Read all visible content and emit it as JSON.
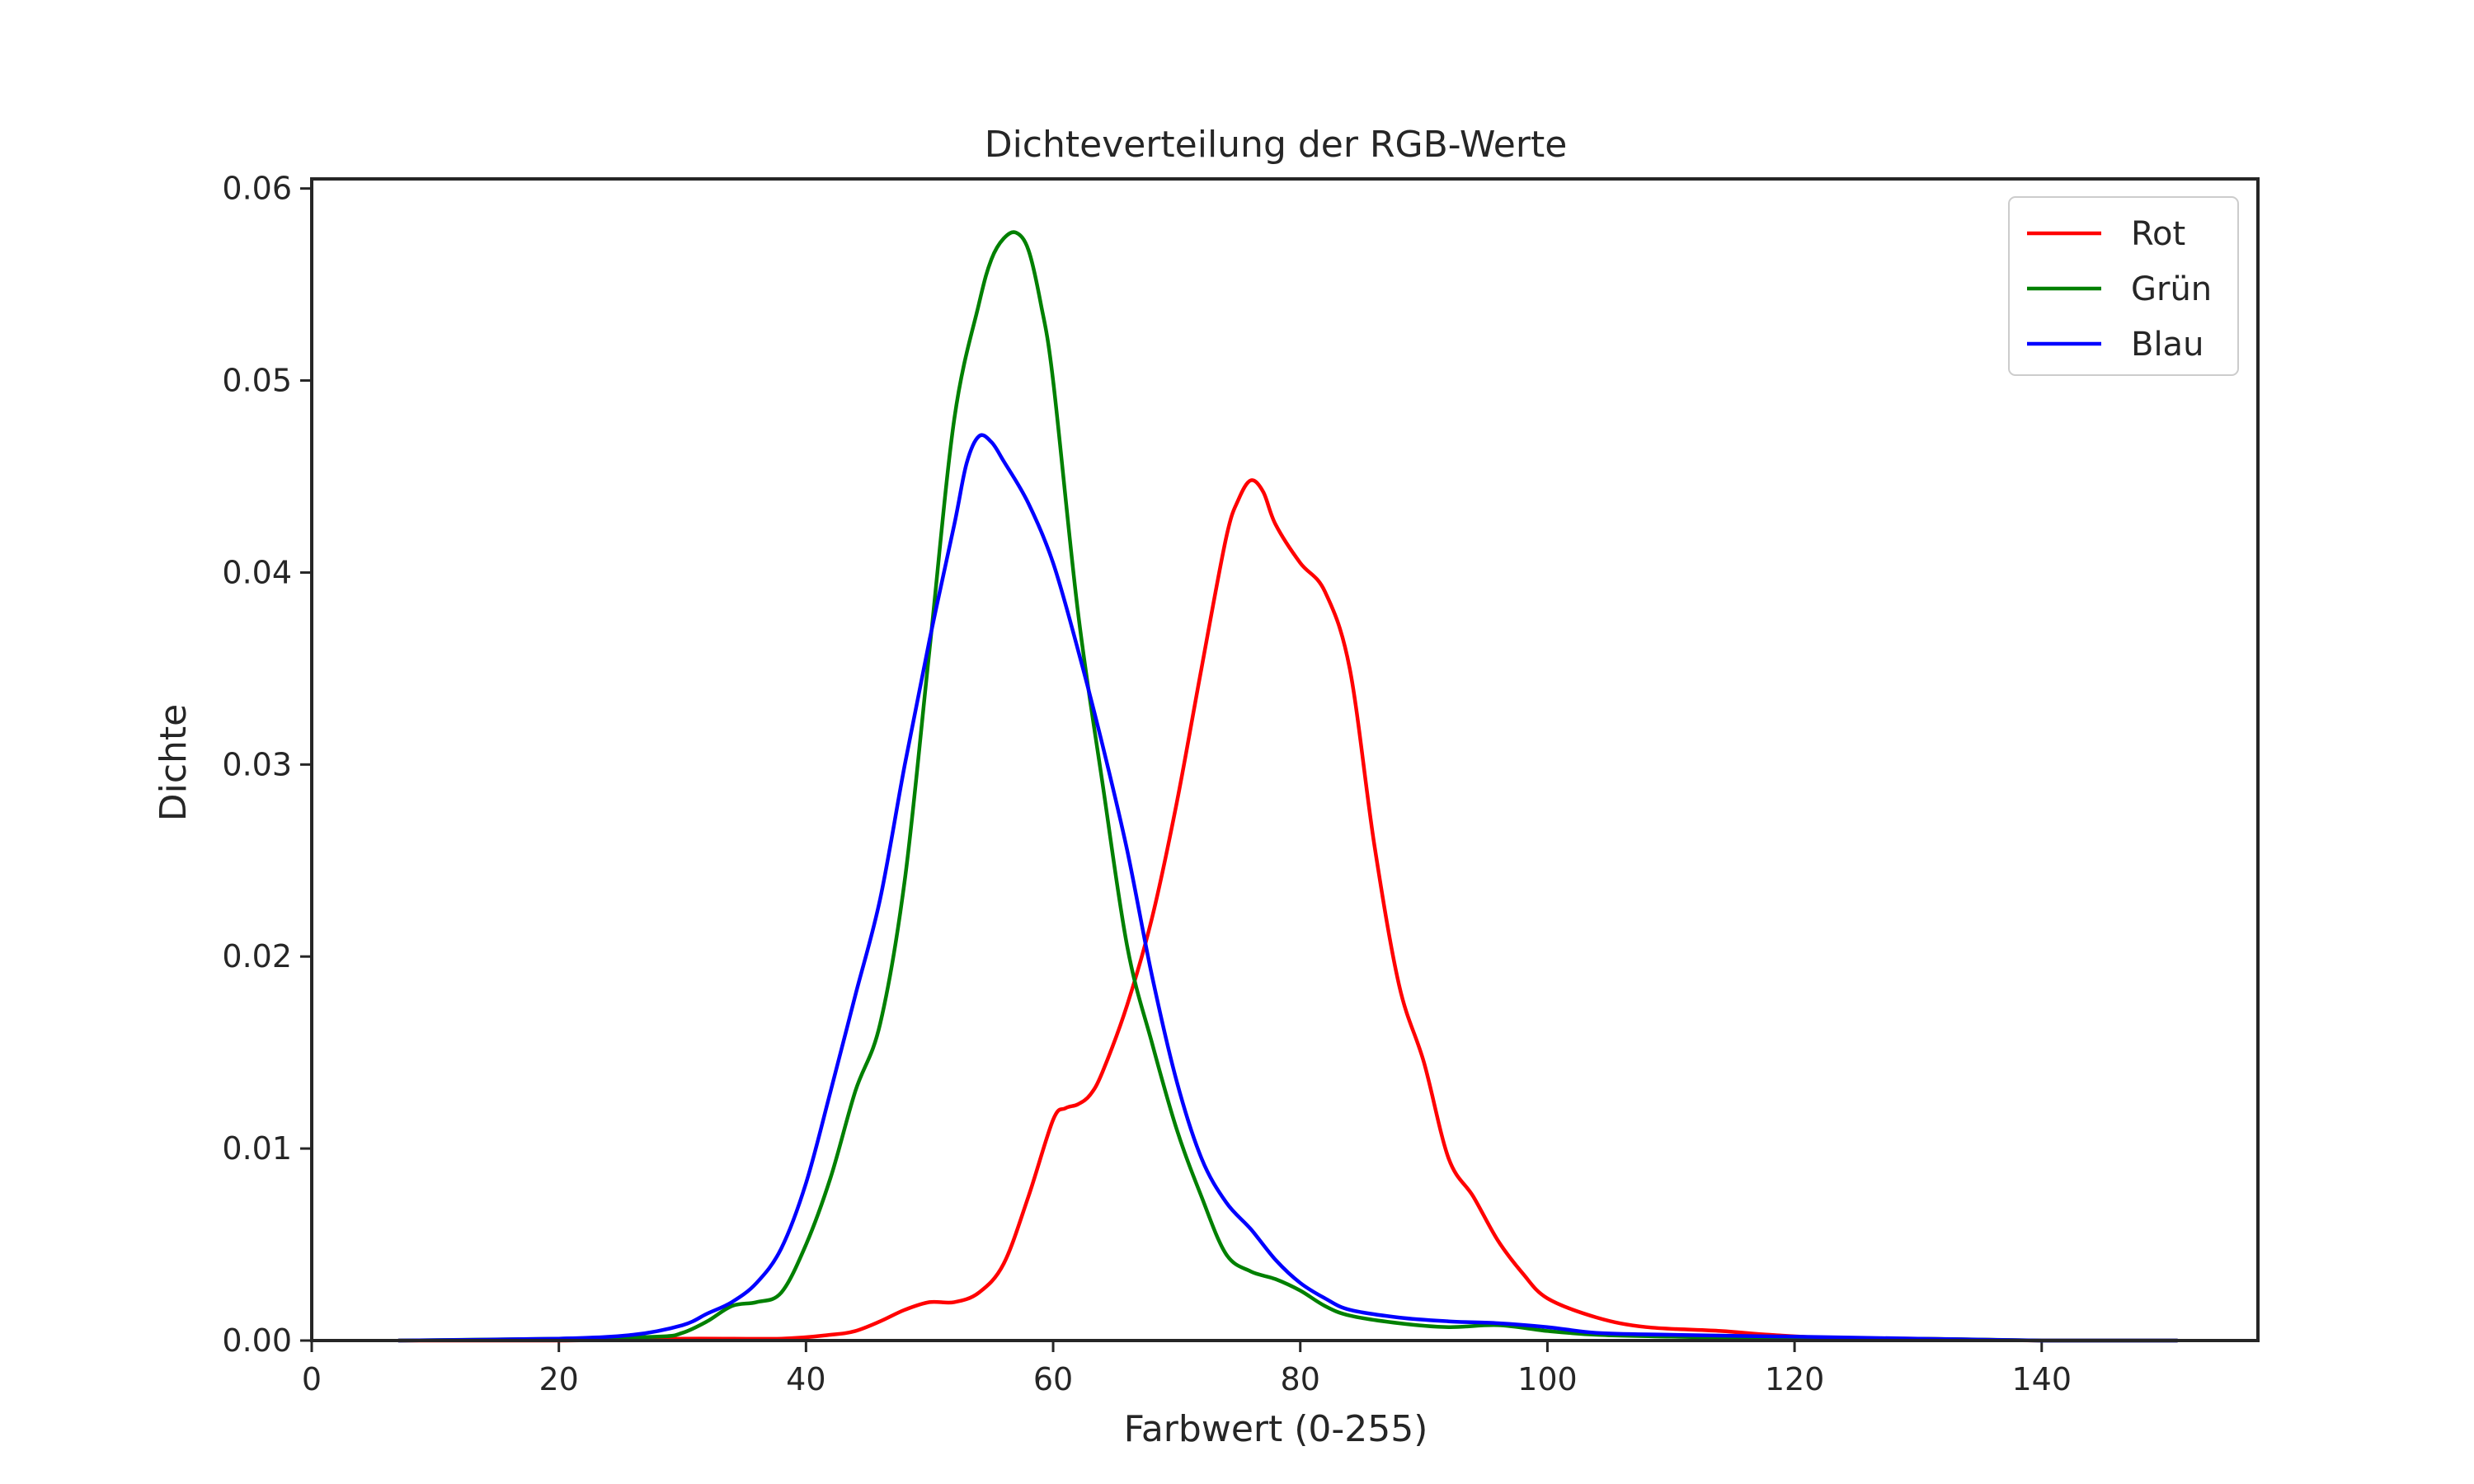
{
  "chart_data": {
    "type": "line",
    "title": "Dichteverteilung der RGB-Werte",
    "xlabel": "Farbwert (0-255)",
    "ylabel": "Dichte",
    "xlim": [
      0,
      157.5
    ],
    "ylim": [
      0,
      0.0605
    ],
    "xticks": [
      {
        "value": 0,
        "label": "0"
      },
      {
        "value": 20,
        "label": "20"
      },
      {
        "value": 40,
        "label": "40"
      },
      {
        "value": 60,
        "label": "60"
      },
      {
        "value": 80,
        "label": "80"
      },
      {
        "value": 100,
        "label": "100"
      },
      {
        "value": 120,
        "label": "120"
      },
      {
        "value": 140,
        "label": "140"
      }
    ],
    "yticks": [
      {
        "value": 0.0,
        "label": "0.00"
      },
      {
        "value": 0.01,
        "label": "0.01"
      },
      {
        "value": 0.02,
        "label": "0.02"
      },
      {
        "value": 0.03,
        "label": "0.03"
      },
      {
        "value": 0.04,
        "label": "0.04"
      },
      {
        "value": 0.05,
        "label": "0.05"
      },
      {
        "value": 0.06,
        "label": "0.06"
      }
    ],
    "grid": false,
    "legend_position": "top-right",
    "series": [
      {
        "name": "Rot",
        "color": "#ff0000",
        "points": [
          [
            7,
            0
          ],
          [
            20,
            0
          ],
          [
            30,
            0.0001
          ],
          [
            38,
            0.0001
          ],
          [
            42,
            0.0003
          ],
          [
            44,
            0.0005
          ],
          [
            46,
            0.001
          ],
          [
            48,
            0.0016
          ],
          [
            50,
            0.002
          ],
          [
            52,
            0.002
          ],
          [
            54,
            0.0025
          ],
          [
            56,
            0.004
          ],
          [
            58,
            0.0075
          ],
          [
            60,
            0.0115
          ],
          [
            61,
            0.0121
          ],
          [
            62,
            0.0123
          ],
          [
            63,
            0.0128
          ],
          [
            64,
            0.014
          ],
          [
            66,
            0.0175
          ],
          [
            68,
            0.022
          ],
          [
            70,
            0.028
          ],
          [
            72,
            0.035
          ],
          [
            74,
            0.0418
          ],
          [
            75,
            0.0438
          ],
          [
            76,
            0.0448
          ],
          [
            77,
            0.0442
          ],
          [
            78,
            0.0425
          ],
          [
            80,
            0.0405
          ],
          [
            82,
            0.039
          ],
          [
            84,
            0.035
          ],
          [
            86,
            0.0258
          ],
          [
            88,
            0.0185
          ],
          [
            90,
            0.0145
          ],
          [
            92,
            0.0095
          ],
          [
            94,
            0.0075
          ],
          [
            96,
            0.0052
          ],
          [
            98,
            0.0035
          ],
          [
            100,
            0.0022
          ],
          [
            104,
            0.0012
          ],
          [
            108,
            0.0007
          ],
          [
            114,
            0.0005
          ],
          [
            118,
            0.0003
          ],
          [
            124,
            0.0001
          ],
          [
            130,
            0.0001
          ],
          [
            140,
            0
          ],
          [
            151,
            0
          ]
        ]
      },
      {
        "name": "Grün",
        "color": "#008000",
        "points": [
          [
            7,
            0
          ],
          [
            20,
            0.0001
          ],
          [
            28,
            0.0002
          ],
          [
            30,
            0.0004
          ],
          [
            32,
            0.001
          ],
          [
            34,
            0.0018
          ],
          [
            36,
            0.002
          ],
          [
            38,
            0.0025
          ],
          [
            40,
            0.005
          ],
          [
            42,
            0.0085
          ],
          [
            44,
            0.013
          ],
          [
            46,
            0.0165
          ],
          [
            48,
            0.024
          ],
          [
            50,
            0.036
          ],
          [
            52,
            0.048
          ],
          [
            54,
            0.054
          ],
          [
            55,
            0.0563
          ],
          [
            56,
            0.0574
          ],
          [
            57,
            0.0577
          ],
          [
            58,
            0.0568
          ],
          [
            59,
            0.054
          ],
          [
            60,
            0.05
          ],
          [
            62,
            0.038
          ],
          [
            64,
            0.029
          ],
          [
            66,
            0.0205
          ],
          [
            68,
            0.0155
          ],
          [
            70,
            0.011
          ],
          [
            72,
            0.0075
          ],
          [
            74,
            0.0045
          ],
          [
            76,
            0.0036
          ],
          [
            78,
            0.0032
          ],
          [
            80,
            0.0026
          ],
          [
            82,
            0.0018
          ],
          [
            84,
            0.0013
          ],
          [
            88,
            0.0009
          ],
          [
            92,
            0.0007
          ],
          [
            96,
            0.0008
          ],
          [
            100,
            0.0005
          ],
          [
            104,
            0.0003
          ],
          [
            110,
            0.0002
          ],
          [
            120,
            0.0001
          ],
          [
            130,
            0.0001
          ],
          [
            140,
            0
          ],
          [
            151,
            0
          ]
        ]
      },
      {
        "name": "Blau",
        "color": "#0000ff",
        "points": [
          [
            7,
            0
          ],
          [
            20,
            0.0001
          ],
          [
            26,
            0.0003
          ],
          [
            30,
            0.0008
          ],
          [
            32,
            0.0014
          ],
          [
            34,
            0.002
          ],
          [
            36,
            0.003
          ],
          [
            38,
            0.0048
          ],
          [
            40,
            0.0082
          ],
          [
            42,
            0.013
          ],
          [
            44,
            0.018
          ],
          [
            46,
            0.023
          ],
          [
            48,
            0.03
          ],
          [
            50,
            0.0365
          ],
          [
            52,
            0.0425
          ],
          [
            53,
            0.0457
          ],
          [
            54,
            0.0471
          ],
          [
            55,
            0.0468
          ],
          [
            56,
            0.0458
          ],
          [
            58,
            0.0436
          ],
          [
            60,
            0.0405
          ],
          [
            62,
            0.036
          ],
          [
            64,
            0.031
          ],
          [
            66,
            0.0255
          ],
          [
            68,
            0.019
          ],
          [
            70,
            0.0135
          ],
          [
            72,
            0.0095
          ],
          [
            74,
            0.0072
          ],
          [
            76,
            0.0058
          ],
          [
            78,
            0.0042
          ],
          [
            80,
            0.003
          ],
          [
            82,
            0.0022
          ],
          [
            84,
            0.0016
          ],
          [
            88,
            0.0012
          ],
          [
            92,
            0.001
          ],
          [
            96,
            0.0009
          ],
          [
            100,
            0.0007
          ],
          [
            104,
            0.0004
          ],
          [
            110,
            0.0003
          ],
          [
            120,
            0.0002
          ],
          [
            130,
            0.0001
          ],
          [
            140,
            0
          ],
          [
            151,
            0
          ]
        ]
      }
    ]
  }
}
